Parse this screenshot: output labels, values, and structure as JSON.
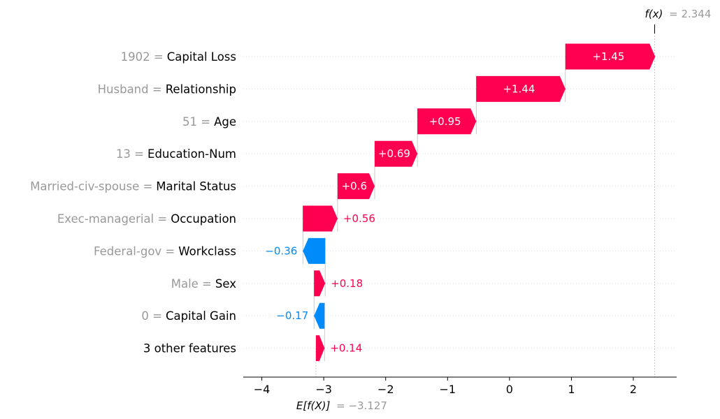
{
  "chart_data": {
    "type": "waterfall",
    "base_value": -3.127,
    "final_value": 2.344,
    "fx_label": "f(x)",
    "fx_value_text": "= 2.344",
    "ex_label": "E[f(X)]",
    "ex_value_text": "= −3.127",
    "xlim": [
      -4.3,
      2.7
    ],
    "xticks": [
      -4,
      -3,
      -2,
      -1,
      0,
      1,
      2
    ],
    "xtick_labels": [
      "−4",
      "−3",
      "−2",
      "−1",
      "0",
      "1",
      "2"
    ],
    "grid": "horizontal dotted",
    "features": [
      {
        "value": "1902 =",
        "name": "Capital Loss",
        "shap": 1.45,
        "label": "+1.45"
      },
      {
        "value": "Husband =",
        "name": "Relationship",
        "shap": 1.44,
        "label": "+1.44"
      },
      {
        "value": "51 =",
        "name": "Age",
        "shap": 0.95,
        "label": "+0.95"
      },
      {
        "value": "13 =",
        "name": "Education-Num",
        "shap": 0.69,
        "label": "+0.69"
      },
      {
        "value": "Married-civ-spouse =",
        "name": "Marital Status",
        "shap": 0.6,
        "label": "+0.6"
      },
      {
        "value": "Exec-managerial =",
        "name": "Occupation",
        "shap": 0.56,
        "label": "+0.56"
      },
      {
        "value": "Federal-gov =",
        "name": "Workclass",
        "shap": -0.36,
        "label": "−0.36"
      },
      {
        "value": "Male =",
        "name": "Sex",
        "shap": 0.18,
        "label": "+0.18"
      },
      {
        "value": "0 =",
        "name": "Capital Gain",
        "shap": -0.17,
        "label": "−0.17"
      },
      {
        "value": "",
        "name": "3 other features",
        "shap": 0.14,
        "label": "+0.14"
      }
    ],
    "colors": {
      "positive": "#ff0051",
      "negative": "#008bfb",
      "value_text": "#999999",
      "axis": "#000000",
      "grid": "#dddddd"
    }
  }
}
